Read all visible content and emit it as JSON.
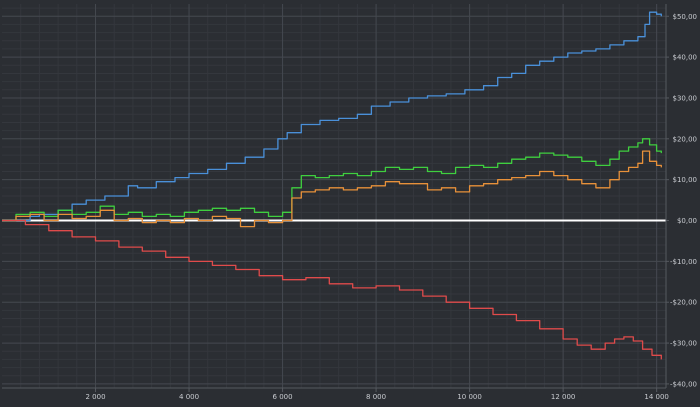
{
  "chart_data": {
    "type": "line",
    "x_ticks": [
      2000,
      4000,
      6000,
      8000,
      10000,
      12000,
      14000
    ],
    "x_tick_labels": [
      "2 000",
      "4 000",
      "6 000",
      "8 000",
      "10 000",
      "12 000",
      "14 000"
    ],
    "y_ticks": [
      50,
      40,
      30,
      20,
      10,
      0,
      -10,
      -20,
      -30,
      -40
    ],
    "y_tick_labels": [
      "$50,00",
      "$40,00",
      "$30,00",
      "$20,00",
      "$10,00",
      "$0,00",
      "-$10,00",
      "-$20,00",
      "-$30,00",
      "-$40,00"
    ],
    "xlim": [
      0,
      14200
    ],
    "ylim": [
      -41,
      53
    ],
    "grid": true,
    "series": [
      {
        "color": "#4a90d9",
        "x": [
          0,
          600,
          800,
          1200,
          1500,
          1800,
          2200,
          2700,
          2900,
          3300,
          3700,
          4000,
          4400,
          4800,
          5200,
          5600,
          5900,
          6100,
          6400,
          6800,
          7200,
          7600,
          7900,
          8300,
          8700,
          9100,
          9500,
          9900,
          10300,
          10600,
          10900,
          11200,
          11500,
          11800,
          12100,
          12400,
          12700,
          13000,
          13300,
          13600,
          13750,
          13850,
          14000,
          14100
        ],
        "y": [
          0,
          1,
          1.5,
          2.5,
          4,
          5,
          6,
          8.5,
          8,
          9.5,
          10.5,
          11.5,
          12.5,
          14,
          15.5,
          17.5,
          20,
          21.5,
          23.5,
          24.5,
          25,
          26,
          28,
          29,
          30,
          30.5,
          31,
          32,
          33,
          35,
          36,
          38,
          39,
          40,
          41,
          41.5,
          42,
          43,
          44,
          45,
          48,
          51,
          50.5,
          50
        ]
      },
      {
        "color": "#3fcf3f",
        "x": [
          0,
          300,
          600,
          900,
          1200,
          1500,
          1800,
          2100,
          2400,
          2700,
          3000,
          3300,
          3600,
          3900,
          4200,
          4500,
          4800,
          5100,
          5400,
          5700,
          6000,
          6200,
          6400,
          6700,
          7000,
          7300,
          7600,
          7900,
          8200,
          8500,
          8800,
          9100,
          9400,
          9700,
          10000,
          10300,
          10600,
          10900,
          11200,
          11500,
          11800,
          12100,
          12400,
          12700,
          13000,
          13200,
          13400,
          13600,
          13700,
          13850,
          14000,
          14100
        ],
        "y": [
          0,
          1.5,
          2,
          1,
          2.5,
          1.5,
          2,
          3.5,
          1.5,
          2,
          1,
          1.5,
          1,
          2,
          2.5,
          3,
          2.5,
          3,
          2,
          1,
          2,
          8,
          11,
          10.5,
          11,
          11.5,
          11,
          12,
          13,
          12.5,
          13,
          12,
          11.5,
          13,
          13.5,
          13,
          14,
          15,
          15.5,
          16.5,
          16,
          15.5,
          14.5,
          13.5,
          15,
          17,
          18,
          19,
          20,
          18.5,
          17,
          16.5
        ]
      },
      {
        "color": "#e8913a",
        "x": [
          0,
          300,
          600,
          900,
          1200,
          1500,
          1800,
          2100,
          2400,
          2700,
          3000,
          3300,
          3600,
          3900,
          4200,
          4500,
          4800,
          5100,
          5400,
          5700,
          6000,
          6200,
          6400,
          6700,
          7000,
          7300,
          7600,
          7900,
          8200,
          8500,
          8800,
          9100,
          9400,
          9700,
          10000,
          10300,
          10600,
          10900,
          11200,
          11500,
          11800,
          12100,
          12400,
          12700,
          13000,
          13200,
          13400,
          13600,
          13700,
          13850,
          14000,
          14100
        ],
        "y": [
          0,
          1,
          1.5,
          0,
          1.5,
          0.5,
          1,
          2.5,
          0,
          0.5,
          -0.5,
          0,
          -0.5,
          0.5,
          0,
          1,
          0.5,
          -1.5,
          0,
          -0.5,
          0,
          5.5,
          7,
          7.5,
          8,
          7.5,
          8,
          8.5,
          9.5,
          9,
          9,
          7.5,
          8,
          7,
          8.5,
          9,
          10,
          10.5,
          11,
          12,
          11,
          10,
          9,
          8,
          10,
          12,
          13,
          14,
          17,
          14.5,
          13.5,
          13
        ]
      },
      {
        "color": "#e04b4b",
        "x": [
          0,
          500,
          1000,
          1500,
          2000,
          2500,
          3000,
          3500,
          4000,
          4500,
          5000,
          5500,
          6000,
          6500,
          7000,
          7500,
          8000,
          8500,
          9000,
          9500,
          10000,
          10500,
          11000,
          11500,
          12000,
          12300,
          12600,
          12900,
          13100,
          13300,
          13500,
          13700,
          13900,
          14100
        ],
        "y": [
          0,
          -1,
          -2.5,
          -4,
          -5,
          -6.5,
          -7.5,
          -9,
          -10,
          -11,
          -12,
          -13.5,
          -14.5,
          -14,
          -15.5,
          -16.5,
          -16,
          -17,
          -18.5,
          -20,
          -21.5,
          -23,
          -24.5,
          -26.5,
          -29,
          -30.5,
          -31.5,
          -30,
          -29,
          -28.5,
          -29.5,
          -31.5,
          -33,
          -34
        ]
      }
    ]
  }
}
